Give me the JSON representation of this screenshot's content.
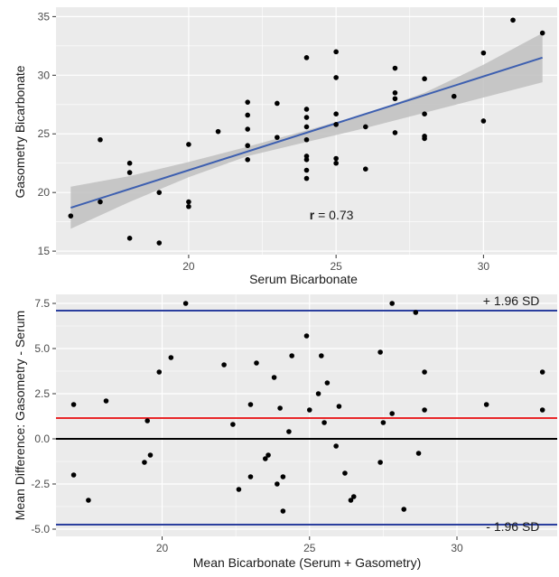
{
  "chart_data": [
    {
      "type": "scatter",
      "title": "",
      "xlabel": "Serum Bicarbonate",
      "ylabel": "Gasometry Bicarbonate",
      "xlim": [
        15.5,
        32.5
      ],
      "ylim": [
        14.7,
        35.8
      ],
      "x_ticks": [
        20,
        25,
        30
      ],
      "y_ticks": [
        15,
        20,
        25,
        30,
        35
      ],
      "grid": true,
      "panel_background": "#ebebeb",
      "point_color": "#000000",
      "points": [
        {
          "x": 16,
          "y": 18
        },
        {
          "x": 17,
          "y": 24.5
        },
        {
          "x": 17,
          "y": 19.2
        },
        {
          "x": 18,
          "y": 22.5
        },
        {
          "x": 18,
          "y": 21.7
        },
        {
          "x": 18,
          "y": 16.1
        },
        {
          "x": 19,
          "y": 20
        },
        {
          "x": 19,
          "y": 15.7
        },
        {
          "x": 20,
          "y": 24.1
        },
        {
          "x": 20,
          "y": 19.2
        },
        {
          "x": 20,
          "y": 18.8
        },
        {
          "x": 21,
          "y": 25.2
        },
        {
          "x": 22,
          "y": 27.7
        },
        {
          "x": 22,
          "y": 26.6
        },
        {
          "x": 22,
          "y": 25.4
        },
        {
          "x": 22,
          "y": 24
        },
        {
          "x": 22,
          "y": 22.8
        },
        {
          "x": 23,
          "y": 27.6
        },
        {
          "x": 23,
          "y": 24.7
        },
        {
          "x": 24,
          "y": 31.5
        },
        {
          "x": 24,
          "y": 27.1
        },
        {
          "x": 24,
          "y": 26.4
        },
        {
          "x": 24,
          "y": 25.6
        },
        {
          "x": 24,
          "y": 24.5
        },
        {
          "x": 24,
          "y": 23.1
        },
        {
          "x": 24,
          "y": 22.8
        },
        {
          "x": 24,
          "y": 21.9
        },
        {
          "x": 24,
          "y": 21.2
        },
        {
          "x": 25,
          "y": 32
        },
        {
          "x": 25,
          "y": 29.8
        },
        {
          "x": 25,
          "y": 26.7
        },
        {
          "x": 25,
          "y": 25.8
        },
        {
          "x": 25,
          "y": 22.9
        },
        {
          "x": 25,
          "y": 22.5
        },
        {
          "x": 26,
          "y": 25.6
        },
        {
          "x": 26,
          "y": 22
        },
        {
          "x": 27,
          "y": 30.6
        },
        {
          "x": 27,
          "y": 28.5
        },
        {
          "x": 27,
          "y": 28
        },
        {
          "x": 27,
          "y": 25.1
        },
        {
          "x": 28,
          "y": 29.7
        },
        {
          "x": 28,
          "y": 26.7
        },
        {
          "x": 28,
          "y": 24.8
        },
        {
          "x": 28,
          "y": 24.6
        },
        {
          "x": 29,
          "y": 28.2
        },
        {
          "x": 30,
          "y": 31.9
        },
        {
          "x": 30,
          "y": 26.1
        },
        {
          "x": 31,
          "y": 34.7
        },
        {
          "x": 32,
          "y": 33.6
        }
      ],
      "fit_line": {
        "color": "#3d5fb0",
        "x": [
          16,
          32
        ],
        "y": [
          18.7,
          31.5
        ]
      },
      "confidence_band": {
        "color": "#bfbfbf",
        "x": [
          16,
          18,
          20,
          22,
          24,
          26,
          28,
          30,
          32
        ],
        "lower": [
          16.9,
          19.2,
          21.3,
          23.1,
          24.3,
          25.5,
          26.8,
          28.1,
          29.4
        ],
        "upper": [
          20.5,
          21.4,
          22.6,
          23.9,
          25.3,
          26.7,
          28.5,
          30.9,
          33.6
        ]
      },
      "annotation": {
        "label": "r",
        "text": " = 0.73",
        "x": 24.1,
        "y": 17.7
      }
    },
    {
      "type": "scatter",
      "title": "",
      "xlabel": "Mean Bicarbonate (Serum + Gasometry)",
      "ylabel": "Mean Difference: Gasometry - Serum",
      "xlim": [
        16.4,
        33.4
      ],
      "ylim": [
        -5.4,
        8.0
      ],
      "x_ticks": [
        20,
        25,
        30
      ],
      "y_ticks": [
        -5.0,
        -2.5,
        0.0,
        2.5,
        5.0,
        7.5
      ],
      "y_tick_labels": [
        "-5.0",
        "-2.5",
        "0.0",
        "2.5",
        "5.0",
        "7.5"
      ],
      "grid": true,
      "panel_background": "#ebebeb",
      "point_color": "#000000",
      "points": [
        {
          "x": 17.0,
          "y": 1.9
        },
        {
          "x": 17.0,
          "y": -2.0
        },
        {
          "x": 17.5,
          "y": -3.4
        },
        {
          "x": 18.1,
          "y": 2.1
        },
        {
          "x": 19.4,
          "y": -1.3
        },
        {
          "x": 19.5,
          "y": 1.0
        },
        {
          "x": 19.6,
          "y": -0.9
        },
        {
          "x": 19.9,
          "y": 3.7
        },
        {
          "x": 20.3,
          "y": 4.5
        },
        {
          "x": 20.8,
          "y": 7.5
        },
        {
          "x": 22.1,
          "y": 4.1
        },
        {
          "x": 22.4,
          "y": 0.8
        },
        {
          "x": 22.6,
          "y": -2.8
        },
        {
          "x": 23.0,
          "y": 1.9
        },
        {
          "x": 23.0,
          "y": -2.1
        },
        {
          "x": 23.2,
          "y": 4.2
        },
        {
          "x": 23.5,
          "y": -1.1
        },
        {
          "x": 23.6,
          "y": -0.9
        },
        {
          "x": 23.8,
          "y": 3.4
        },
        {
          "x": 23.9,
          "y": -2.5
        },
        {
          "x": 24.0,
          "y": 1.7
        },
        {
          "x": 24.1,
          "y": -2.1
        },
        {
          "x": 24.1,
          "y": -4.0
        },
        {
          "x": 24.3,
          "y": 0.4
        },
        {
          "x": 24.4,
          "y": 4.6
        },
        {
          "x": 24.9,
          "y": 5.7
        },
        {
          "x": 25.0,
          "y": 1.6
        },
        {
          "x": 25.3,
          "y": 2.5
        },
        {
          "x": 25.4,
          "y": 4.6
        },
        {
          "x": 25.5,
          "y": 0.9
        },
        {
          "x": 25.6,
          "y": 3.1
        },
        {
          "x": 25.9,
          "y": -0.4
        },
        {
          "x": 26.0,
          "y": 1.8
        },
        {
          "x": 26.2,
          "y": -1.9
        },
        {
          "x": 26.4,
          "y": -3.4
        },
        {
          "x": 26.5,
          "y": -3.2
        },
        {
          "x": 27.4,
          "y": 4.8
        },
        {
          "x": 27.4,
          "y": -1.3
        },
        {
          "x": 27.5,
          "y": 0.9
        },
        {
          "x": 27.8,
          "y": 7.5
        },
        {
          "x": 27.8,
          "y": 1.4
        },
        {
          "x": 28.2,
          "y": -3.9
        },
        {
          "x": 28.6,
          "y": 7.0
        },
        {
          "x": 28.7,
          "y": -0.8
        },
        {
          "x": 28.9,
          "y": 3.7
        },
        {
          "x": 28.9,
          "y": 1.6
        },
        {
          "x": 31.0,
          "y": 1.9
        },
        {
          "x": 32.9,
          "y": 3.7
        },
        {
          "x": 32.9,
          "y": 1.6
        }
      ],
      "reference_lines": [
        {
          "name": "upper",
          "y": 7.1,
          "color": "#2b3f9e"
        },
        {
          "name": "mean",
          "y": 1.15,
          "color": "#e8272a"
        },
        {
          "name": "zero",
          "y": 0.0,
          "color": "#000000"
        },
        {
          "name": "lower",
          "y": -4.75,
          "color": "#2b3f9e"
        }
      ],
      "annotations": [
        {
          "text": "+ 1.96 SD",
          "x": 32.8,
          "y": 7.4
        },
        {
          "text": "- 1.96 SD",
          "x": 32.8,
          "y": -5.1
        }
      ]
    }
  ]
}
